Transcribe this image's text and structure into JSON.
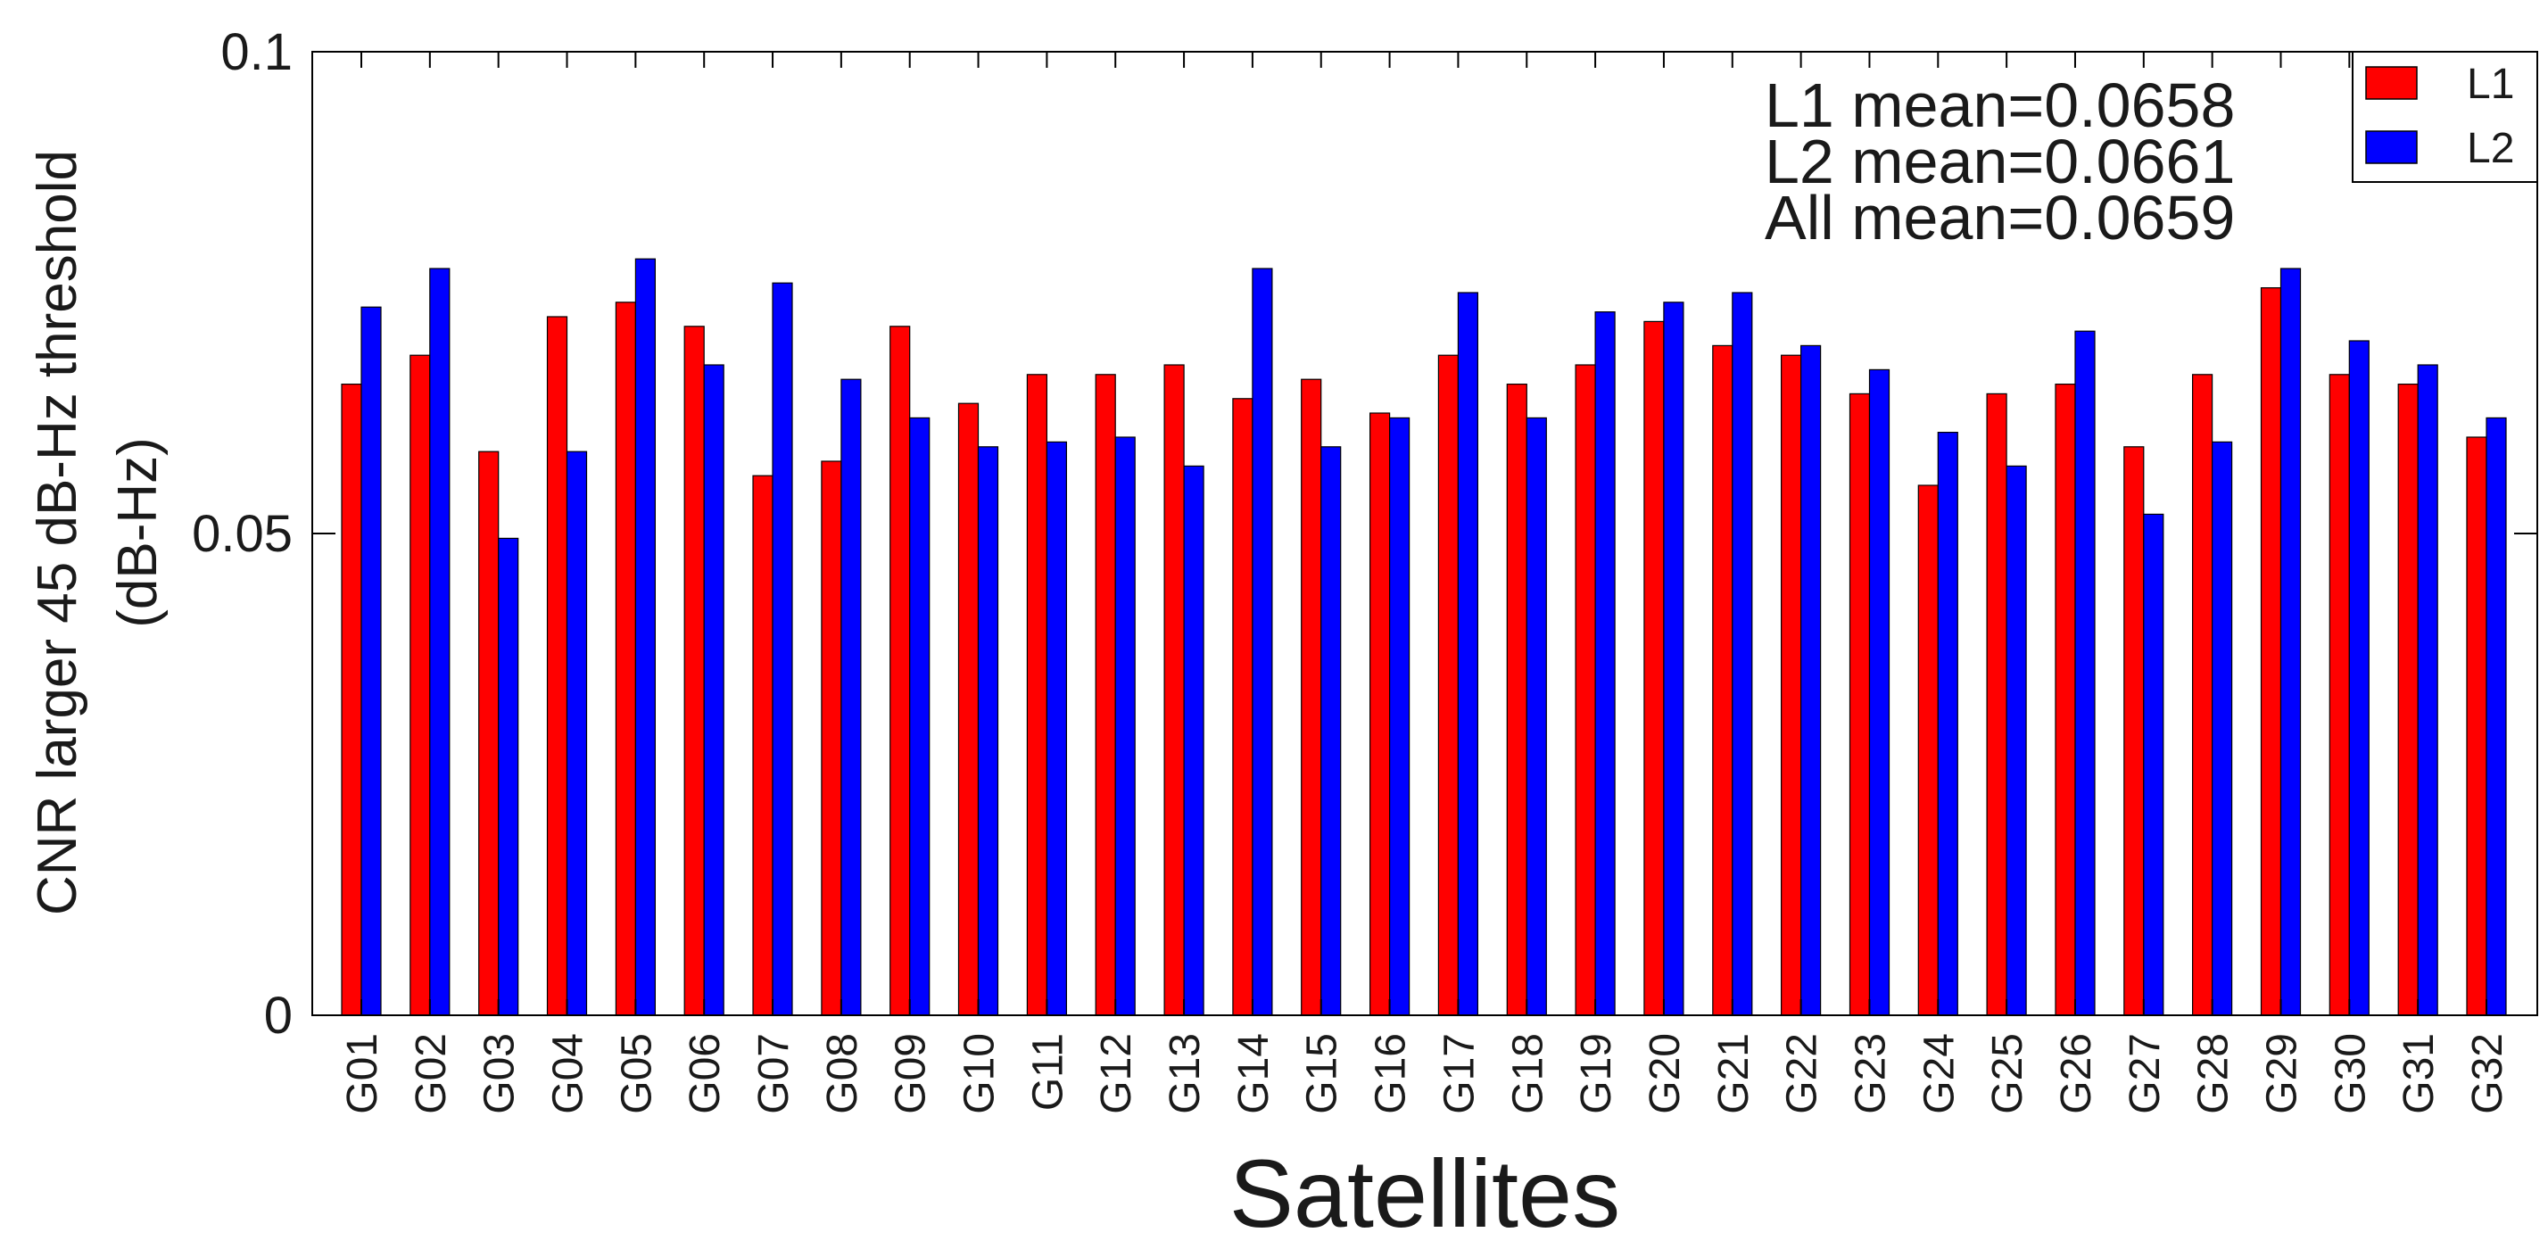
{
  "chart_data": {
    "type": "bar",
    "title": "",
    "xlabel": "Satellites",
    "ylabel_lines": [
      "CNR larger 45 dB-Hz threshold",
      "(dB-Hz)"
    ],
    "ylim": [
      0,
      0.1
    ],
    "yticks": [
      {
        "value": 0,
        "label": "0"
      },
      {
        "value": 0.05,
        "label": "0.05"
      },
      {
        "value": 0.1,
        "label": "0.1"
      }
    ],
    "categories": [
      "G01",
      "G02",
      "G03",
      "G04",
      "G05",
      "G06",
      "G07",
      "G08",
      "G09",
      "G10",
      "G11",
      "G12",
      "G13",
      "G14",
      "G15",
      "G16",
      "G17",
      "G18",
      "G19",
      "G20",
      "G21",
      "G22",
      "G23",
      "G24",
      "G25",
      "G26",
      "G27",
      "G28",
      "G29",
      "G30",
      "G31",
      "G32"
    ],
    "series": [
      {
        "name": "L1",
        "color": "#ff0000",
        "values": [
          0.0655,
          0.0685,
          0.0585,
          0.0725,
          0.074,
          0.0715,
          0.056,
          0.0575,
          0.0715,
          0.0635,
          0.0665,
          0.0665,
          0.0675,
          0.064,
          0.066,
          0.0625,
          0.0685,
          0.0655,
          0.0675,
          0.072,
          0.0695,
          0.0685,
          0.0645,
          0.055,
          0.0645,
          0.0655,
          0.059,
          0.0665,
          0.0755,
          0.0665,
          0.0655,
          0.06
        ]
      },
      {
        "name": "L2",
        "color": "#0000ff",
        "values": [
          0.0735,
          0.0775,
          0.0495,
          0.0585,
          0.0785,
          0.0675,
          0.076,
          0.066,
          0.062,
          0.059,
          0.0595,
          0.06,
          0.057,
          0.0775,
          0.059,
          0.062,
          0.075,
          0.062,
          0.073,
          0.074,
          0.075,
          0.0695,
          0.067,
          0.0605,
          0.057,
          0.071,
          0.052,
          0.0595,
          0.0775,
          0.07,
          0.0675,
          0.062
        ]
      }
    ],
    "annotations": [
      "L1 mean=0.0658",
      "L2 mean=0.0661",
      "All mean=0.0659"
    ],
    "legend": {
      "placement": "top-right",
      "entries": [
        "L1",
        "L2"
      ]
    },
    "grid": false
  }
}
